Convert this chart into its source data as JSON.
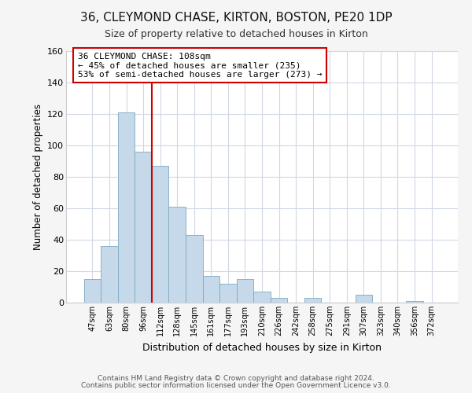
{
  "title": "36, CLEYMOND CHASE, KIRTON, BOSTON, PE20 1DP",
  "subtitle": "Size of property relative to detached houses in Kirton",
  "xlabel": "Distribution of detached houses by size in Kirton",
  "ylabel": "Number of detached properties",
  "bin_labels": [
    "47sqm",
    "63sqm",
    "80sqm",
    "96sqm",
    "112sqm",
    "128sqm",
    "145sqm",
    "161sqm",
    "177sqm",
    "193sqm",
    "210sqm",
    "226sqm",
    "242sqm",
    "258sqm",
    "275sqm",
    "291sqm",
    "307sqm",
    "323sqm",
    "340sqm",
    "356sqm",
    "372sqm"
  ],
  "bar_heights": [
    15,
    36,
    121,
    96,
    87,
    61,
    43,
    17,
    12,
    15,
    7,
    3,
    0,
    3,
    0,
    0,
    5,
    0,
    0,
    1,
    0
  ],
  "bar_color": "#c6d9ea",
  "bar_edge_color": "#7aaabf",
  "vline_color": "#cc0000",
  "vline_x_idx": 4,
  "annotation_text": "36 CLEYMOND CHASE: 108sqm\n← 45% of detached houses are smaller (235)\n53% of semi-detached houses are larger (273) →",
  "annotation_box_color": "#ffffff",
  "annotation_box_edge": "#cc0000",
  "ylim": [
    0,
    160
  ],
  "yticks": [
    0,
    20,
    40,
    60,
    80,
    100,
    120,
    140,
    160
  ],
  "footer_line1": "Contains HM Land Registry data © Crown copyright and database right 2024.",
  "footer_line2": "Contains public sector information licensed under the Open Government Licence v3.0.",
  "bg_color": "#f5f5f5",
  "plot_bg_color": "#ffffff",
  "grid_color": "#d0d8e4"
}
